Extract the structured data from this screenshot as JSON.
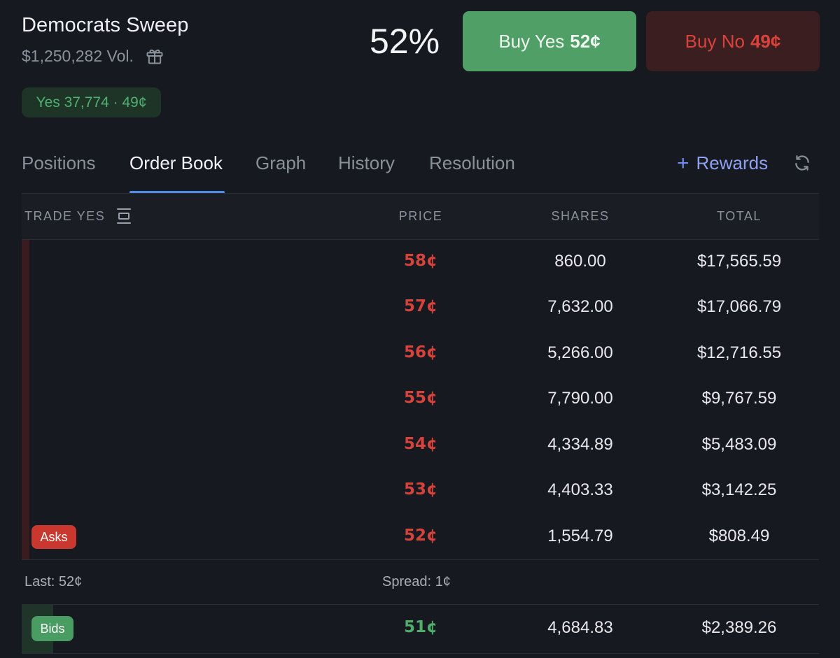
{
  "market": {
    "title": "Democrats Sweep",
    "volume": "$1,250,282 Vol.",
    "gift_icon": "gift-icon",
    "position_badge": "Yes 37,774 · 49¢",
    "percent": "52%"
  },
  "actions": {
    "buy_yes_label": "Buy Yes",
    "buy_yes_price": "52¢",
    "buy_no_label": "Buy No",
    "buy_no_price": "49¢"
  },
  "tabs": [
    {
      "label": "Positions"
    },
    {
      "label": "Order Book"
    },
    {
      "label": "Graph"
    },
    {
      "label": "History"
    },
    {
      "label": "Resolution"
    }
  ],
  "active_tab": "Order Book",
  "rewards": {
    "plus": "+",
    "label": "Rewards"
  },
  "book": {
    "headers": {
      "trade": "TRADE YES",
      "price": "PRICE",
      "shares": "SHARES",
      "total": "TOTAL"
    },
    "asks": [
      {
        "price": "58¢",
        "shares": "860.00",
        "total": "$17,565.59"
      },
      {
        "price": "57¢",
        "shares": "7,632.00",
        "total": "$17,066.79"
      },
      {
        "price": "56¢",
        "shares": "5,266.00",
        "total": "$12,716.55"
      },
      {
        "price": "55¢",
        "shares": "7,790.00",
        "total": "$9,767.59"
      },
      {
        "price": "54¢",
        "shares": "4,334.89",
        "total": "$5,483.09"
      },
      {
        "price": "53¢",
        "shares": "4,403.33",
        "total": "$3,142.25"
      },
      {
        "price": "52¢",
        "shares": "1,554.79",
        "total": "$808.49"
      }
    ],
    "asks_badge": "Asks",
    "last": "Last: 52¢",
    "spread": "Spread: 1¢",
    "bids": [
      {
        "price": "51¢",
        "shares": "4,684.83",
        "total": "$2,389.26"
      }
    ],
    "bids_badge": "Bids"
  },
  "colors": {
    "background": "#16191f",
    "ask_red": "#d5433b",
    "bid_green": "#4fae6c",
    "buy_yes_bg": "#4f9f67",
    "buy_no_bg": "#3a1e20",
    "tab_accent": "#4e8de5",
    "rewards": "#8ea0f0"
  }
}
